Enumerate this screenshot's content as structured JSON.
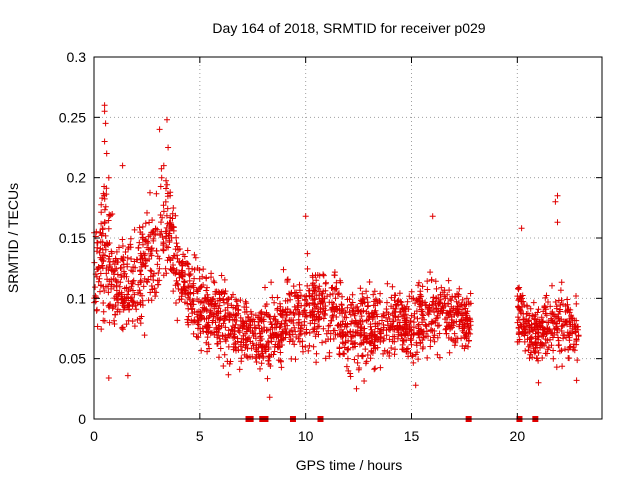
{
  "chart_data": {
    "type": "scatter",
    "title": "Day 164 of 2018, SRMTID for receiver p029",
    "xlabel": "GPS time / hours",
    "ylabel": "SRMTID / TECUs",
    "xlim": [
      0,
      24
    ],
    "ylim": [
      0,
      0.3
    ],
    "xticks": [
      0,
      5,
      10,
      15,
      20
    ],
    "xtick_labels": [
      "0",
      "5",
      "10",
      "15",
      "20"
    ],
    "yticks": [
      0,
      0.05,
      0.1,
      0.15,
      0.2,
      0.25,
      0.3
    ],
    "ytick_labels": [
      "0",
      "0.05",
      "0.1",
      "0.15",
      "0.2",
      "0.25",
      "0.3"
    ],
    "grid": true,
    "marker": "+",
    "series_color": "#e00000",
    "series": [
      {
        "name": "SRMTID",
        "envelope": [
          {
            "x": 0.0,
            "y": 0.12,
            "spread": 0.035
          },
          {
            "x": 0.5,
            "y": 0.14,
            "spread": 0.05
          },
          {
            "x": 1.0,
            "y": 0.11,
            "spread": 0.04
          },
          {
            "x": 2.0,
            "y": 0.11,
            "spread": 0.035
          },
          {
            "x": 3.0,
            "y": 0.15,
            "spread": 0.045
          },
          {
            "x": 3.5,
            "y": 0.16,
            "spread": 0.04
          },
          {
            "x": 4.0,
            "y": 0.12,
            "spread": 0.03
          },
          {
            "x": 5.0,
            "y": 0.09,
            "spread": 0.03
          },
          {
            "x": 6.0,
            "y": 0.085,
            "spread": 0.03
          },
          {
            "x": 7.0,
            "y": 0.075,
            "spread": 0.025
          },
          {
            "x": 8.0,
            "y": 0.07,
            "spread": 0.025
          },
          {
            "x": 9.0,
            "y": 0.08,
            "spread": 0.03
          },
          {
            "x": 10.0,
            "y": 0.09,
            "spread": 0.03
          },
          {
            "x": 11.0,
            "y": 0.09,
            "spread": 0.03
          },
          {
            "x": 12.0,
            "y": 0.075,
            "spread": 0.03
          },
          {
            "x": 13.0,
            "y": 0.075,
            "spread": 0.03
          },
          {
            "x": 14.0,
            "y": 0.08,
            "spread": 0.025
          },
          {
            "x": 15.0,
            "y": 0.075,
            "spread": 0.025
          },
          {
            "x": 16.0,
            "y": 0.09,
            "spread": 0.03
          },
          {
            "x": 17.0,
            "y": 0.085,
            "spread": 0.025
          },
          {
            "x": 17.7,
            "y": 0.08,
            "spread": 0.02
          },
          {
            "x": 20.0,
            "y": 0.085,
            "spread": 0.025
          },
          {
            "x": 21.0,
            "y": 0.07,
            "spread": 0.02
          },
          {
            "x": 22.0,
            "y": 0.08,
            "spread": 0.03
          },
          {
            "x": 22.9,
            "y": 0.075,
            "spread": 0.02
          }
        ],
        "segments": [
          [
            0.0,
            17.8
          ],
          [
            20.0,
            22.9
          ]
        ],
        "notable_points": [
          {
            "x": 0.5,
            "y": 0.26
          },
          {
            "x": 0.5,
            "y": 0.255
          },
          {
            "x": 0.55,
            "y": 0.245
          },
          {
            "x": 0.5,
            "y": 0.23
          },
          {
            "x": 0.6,
            "y": 0.22
          },
          {
            "x": 3.1,
            "y": 0.24
          },
          {
            "x": 3.45,
            "y": 0.248
          },
          {
            "x": 3.5,
            "y": 0.225
          },
          {
            "x": 1.35,
            "y": 0.21
          },
          {
            "x": 3.3,
            "y": 0.21
          },
          {
            "x": 3.2,
            "y": 0.2
          },
          {
            "x": 0.7,
            "y": 0.2
          },
          {
            "x": 16.0,
            "y": 0.168
          },
          {
            "x": 10.0,
            "y": 0.168
          },
          {
            "x": 20.2,
            "y": 0.158
          },
          {
            "x": 21.9,
            "y": 0.185
          },
          {
            "x": 21.8,
            "y": 0.18
          },
          {
            "x": 21.9,
            "y": 0.163
          },
          {
            "x": 8.3,
            "y": 0.018
          },
          {
            "x": 12.4,
            "y": 0.025
          },
          {
            "x": 15.2,
            "y": 0.028
          },
          {
            "x": 21.0,
            "y": 0.03
          },
          {
            "x": 22.8,
            "y": 0.032
          },
          {
            "x": 0.7,
            "y": 0.034
          },
          {
            "x": 1.6,
            "y": 0.036
          }
        ],
        "zero_points": [
          7.3,
          7.4,
          7.95,
          8.0,
          8.05,
          8.1,
          9.4,
          10.7,
          17.7,
          20.1,
          20.85
        ]
      }
    ]
  }
}
